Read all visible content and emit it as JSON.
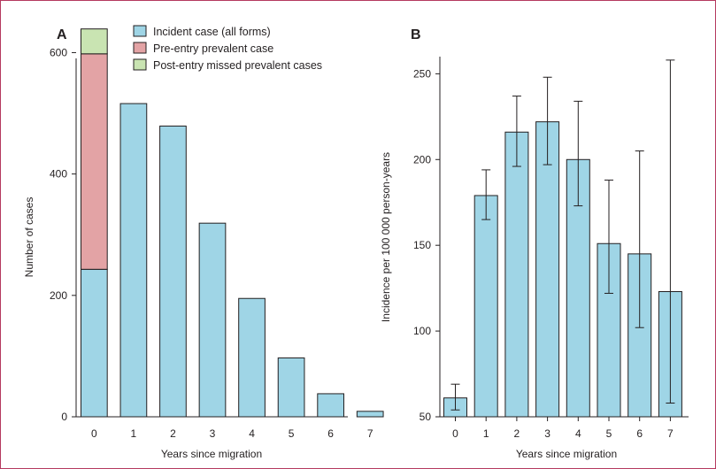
{
  "frame_color": "#b5395f",
  "colors": {
    "incident": "#9fd5e6",
    "pre_entry": "#e3a3a5",
    "post_entry": "#c9e4b2",
    "outline": "#231f20"
  },
  "chart_data": [
    {
      "panel": "A",
      "type": "bar",
      "stacked": true,
      "categories": [
        "0",
        "1",
        "2",
        "3",
        "4",
        "5",
        "6",
        "7"
      ],
      "series": [
        {
          "name": "Incident case (all forms)",
          "values": [
            243,
            516,
            479,
            319,
            195,
            97,
            38,
            9
          ]
        },
        {
          "name": "Pre-entry prevalent case",
          "values": [
            355,
            0,
            0,
            0,
            0,
            0,
            0,
            0
          ]
        },
        {
          "name": "Post-entry missed prevalent cases",
          "values": [
            41,
            0,
            0,
            0,
            0,
            0,
            0,
            0
          ]
        }
      ],
      "xlabel": "Years since migration",
      "ylabel": "Number of cases",
      "ylim": [
        0,
        640
      ],
      "yticks": [
        0,
        200,
        400,
        600
      ],
      "legend_position": "top-right",
      "grid": false
    },
    {
      "panel": "B",
      "type": "bar",
      "error_bars": true,
      "categories": [
        "0",
        "1",
        "2",
        "3",
        "4",
        "5",
        "6",
        "7"
      ],
      "values": [
        61,
        179,
        216,
        222,
        200,
        151,
        145,
        123
      ],
      "ci_lower": [
        54,
        165,
        196,
        197,
        173,
        122,
        102,
        58
      ],
      "ci_upper": [
        69,
        194,
        237,
        248,
        234,
        188,
        205,
        258
      ],
      "xlabel": "Years since migration",
      "ylabel": "Incidence per 100 000 person-years",
      "ylim": [
        50,
        260
      ],
      "yticks": [
        50,
        100,
        150,
        200,
        250
      ],
      "grid": false
    }
  ]
}
